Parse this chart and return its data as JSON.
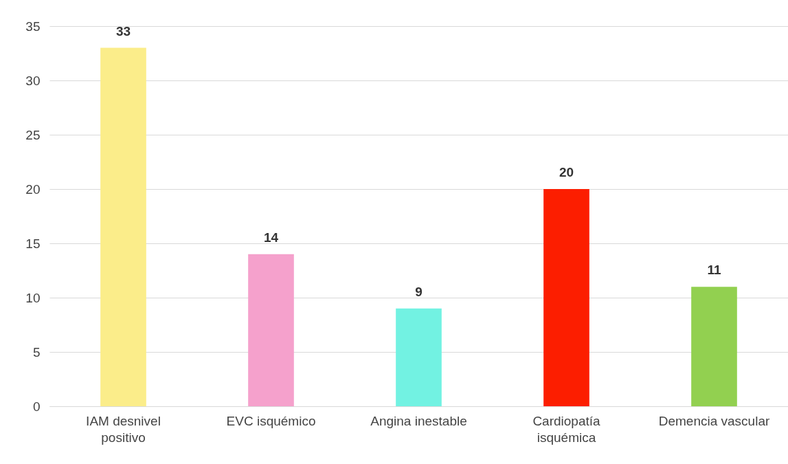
{
  "chart_data": {
    "type": "bar",
    "categories": [
      "IAM desnivel positivo",
      "EVC isquémico",
      "Angina inestable",
      "Cardiopatía isquémica",
      "Demencia vascular"
    ],
    "values": [
      33,
      14,
      9,
      20,
      11
    ],
    "colors": [
      "#fbed8a",
      "#f5a1cc",
      "#72f2e2",
      "#fc1e00",
      "#92d050"
    ],
    "ylim": [
      0,
      35
    ],
    "yticks": [
      0,
      5,
      10,
      15,
      20,
      25,
      30,
      35
    ],
    "grid": "y",
    "data_labels": true
  }
}
